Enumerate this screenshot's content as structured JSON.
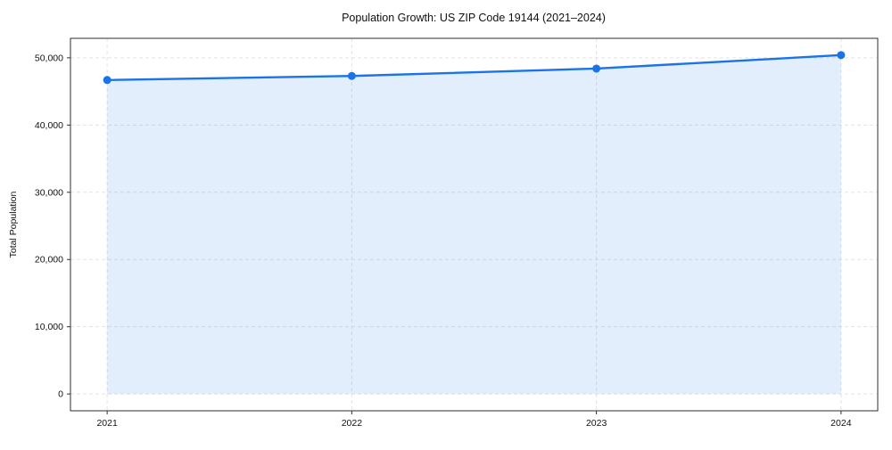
{
  "chart_data": {
    "type": "area",
    "title": "Population Growth: US ZIP Code 19144 (2021–2024)",
    "xlabel": "",
    "ylabel": "Total Population",
    "x": [
      2021,
      2022,
      2023,
      2024
    ],
    "xtick_labels": [
      "2021",
      "2022",
      "2023",
      "2024"
    ],
    "series": [
      {
        "name": "Total Population",
        "values": [
          46700,
          47300,
          48400,
          50400
        ]
      }
    ],
    "yticks": [
      0,
      10000,
      20000,
      30000,
      40000,
      50000
    ],
    "ytick_labels": [
      "0",
      "10,000",
      "20,000",
      "30,000",
      "40,000",
      "50,000"
    ],
    "xlim": [
      2020.85,
      2024.15
    ],
    "ylim": [
      -2500,
      52900
    ],
    "grid": true,
    "legend": false,
    "fill_baseline": 0,
    "colors": {
      "line": "#1a73e8",
      "marker": "#1a73e8",
      "area_fill": "rgba(26,115,232,0.12)",
      "grid": "#e3e3e3",
      "spine": "#2e2e2e",
      "tick": "#2e2e2e",
      "text": "#111111",
      "background": "#ffffff"
    }
  }
}
